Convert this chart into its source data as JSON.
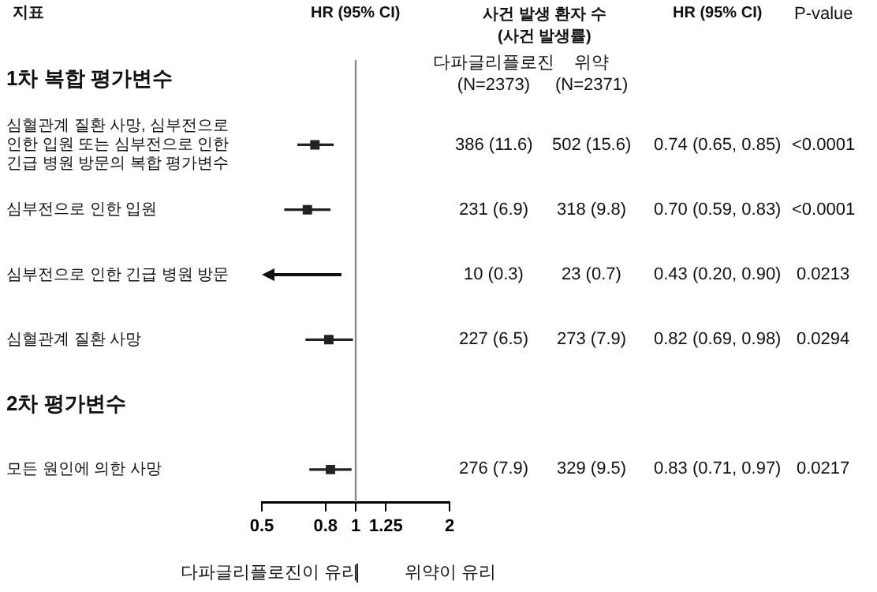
{
  "chart_data": {
    "type": "scatter",
    "orientation": "horizontal",
    "ylabel": "지표",
    "categories": [
      "1차 복합 평가변수",
      "심혈관계 질환 사망, 심부전으로 인한 입원 또는 심부전으로 인한 긴급 병원 방문의 복합 평가변수",
      "심부전으로 인한 입원",
      "심부전으로 인한 긴급 병원 방문",
      "심혈관계 질환 사망",
      "2차 평가변수",
      "모든 원인에 의한 사망"
    ],
    "series": [
      {
        "color": "#222222",
        "values": [
          null,
          0.74,
          0.7,
          null,
          0.82,
          null,
          0.83
        ],
        "errors": [
          null,
          [
            0.65,
            0.85
          ],
          [
            0.59,
            0.83
          ],
          null,
          [
            0.69,
            0.98
          ],
          null,
          [
            0.71,
            0.97
          ]
        ],
        "value_labels": [
          null,
          "0.74 (0.65, 0.85)",
          "0.70 (0.59, 0.83)",
          "0.43 (0.20, 0.90)",
          "0.82 (0.69, 0.98)",
          null,
          "0.83 (0.71, 0.97)"
        ]
      }
    ],
    "marker": "square",
    "log": "x",
    "xlim": [
      0.5,
      2
    ],
    "xticks": [
      0.5,
      0.8,
      1,
      1.25,
      2
    ],
    "ref_lines": [
      {
        "axis": "x",
        "value": 1,
        "color": "#888888"
      }
    ],
    "annotations": [
      "HR (95% CI)",
      "사건 발생 환자 수\n(사건 발생률)",
      "다파글리플로진\n(N=2373)",
      "위약\n(N=2371)",
      "HR (95% CI)",
      "P-value",
      "다파글리플로진이 유리",
      "위약이 유리",
      "386 (11.6)",
      "502 (15.6)",
      "<0.0001",
      "231 (6.9)",
      "318 (9.8)",
      "<0.0001",
      "10 (0.3)",
      "23 (0.7)",
      "0.0213",
      "227 (6.5)",
      "273 (7.9)",
      "0.0294",
      "276 (7.9)",
      "329 (9.5)",
      "0.0217"
    ]
  }
}
